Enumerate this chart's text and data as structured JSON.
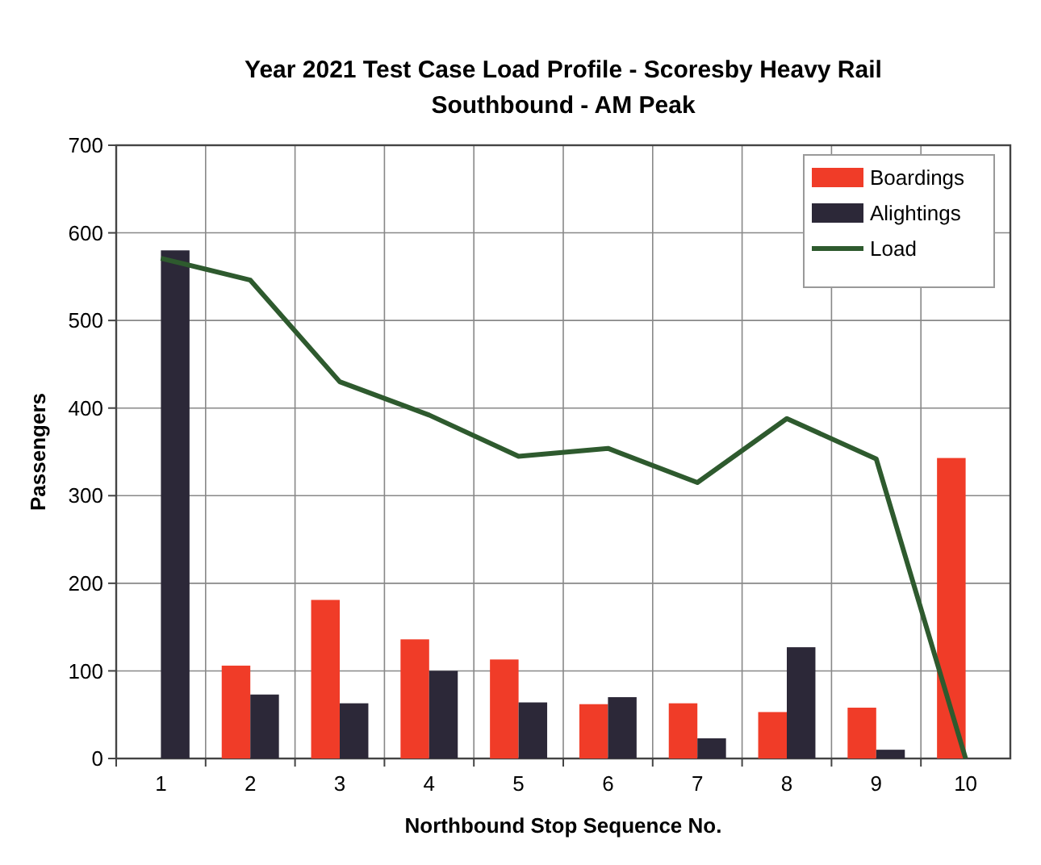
{
  "chart_data": {
    "type": "bar",
    "title": "Year 2021 Test Case Load Profile - Scoresby Heavy Rail",
    "subtitle": "Southbound - AM Peak",
    "xlabel": "Northbound Stop Sequence No.",
    "ylabel": "Passengers",
    "categories": [
      "1",
      "2",
      "3",
      "4",
      "5",
      "6",
      "7",
      "8",
      "9",
      "10"
    ],
    "series": [
      {
        "name": "Boardings",
        "color": "#f03c28",
        "values": [
          0,
          106,
          181,
          136,
          113,
          62,
          63,
          53,
          58,
          343
        ]
      },
      {
        "name": "Alightings",
        "color": "#2c2838",
        "values": [
          580,
          73,
          63,
          100,
          64,
          70,
          23,
          127,
          10,
          0
        ]
      },
      {
        "name": "Load",
        "type": "line",
        "color": "#2e5a2e",
        "values": [
          571,
          546,
          430,
          392,
          345,
          354,
          315,
          388,
          342,
          0
        ]
      }
    ],
    "ylim": [
      0,
      700
    ],
    "yticks": [
      0,
      100,
      200,
      300,
      400,
      500,
      600,
      700
    ],
    "grid": true,
    "legend": "top right",
    "marker": "none",
    "line_style": "solid"
  }
}
